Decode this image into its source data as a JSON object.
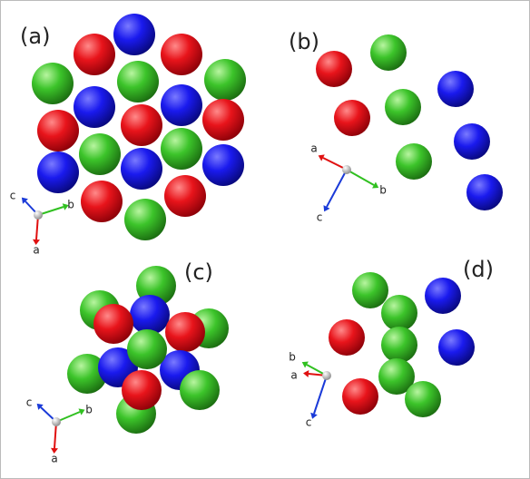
{
  "panels": [
    {
      "label": "(a)",
      "axis_labels": [
        "a",
        "b",
        "c"
      ]
    },
    {
      "label": "(b)",
      "axis_labels": [
        "a",
        "b",
        "c"
      ]
    },
    {
      "label": "(c)",
      "axis_labels": [
        "a",
        "b",
        "c"
      ]
    },
    {
      "label": "(d)",
      "axis_labels": [
        "a",
        "b",
        "c"
      ]
    }
  ]
}
